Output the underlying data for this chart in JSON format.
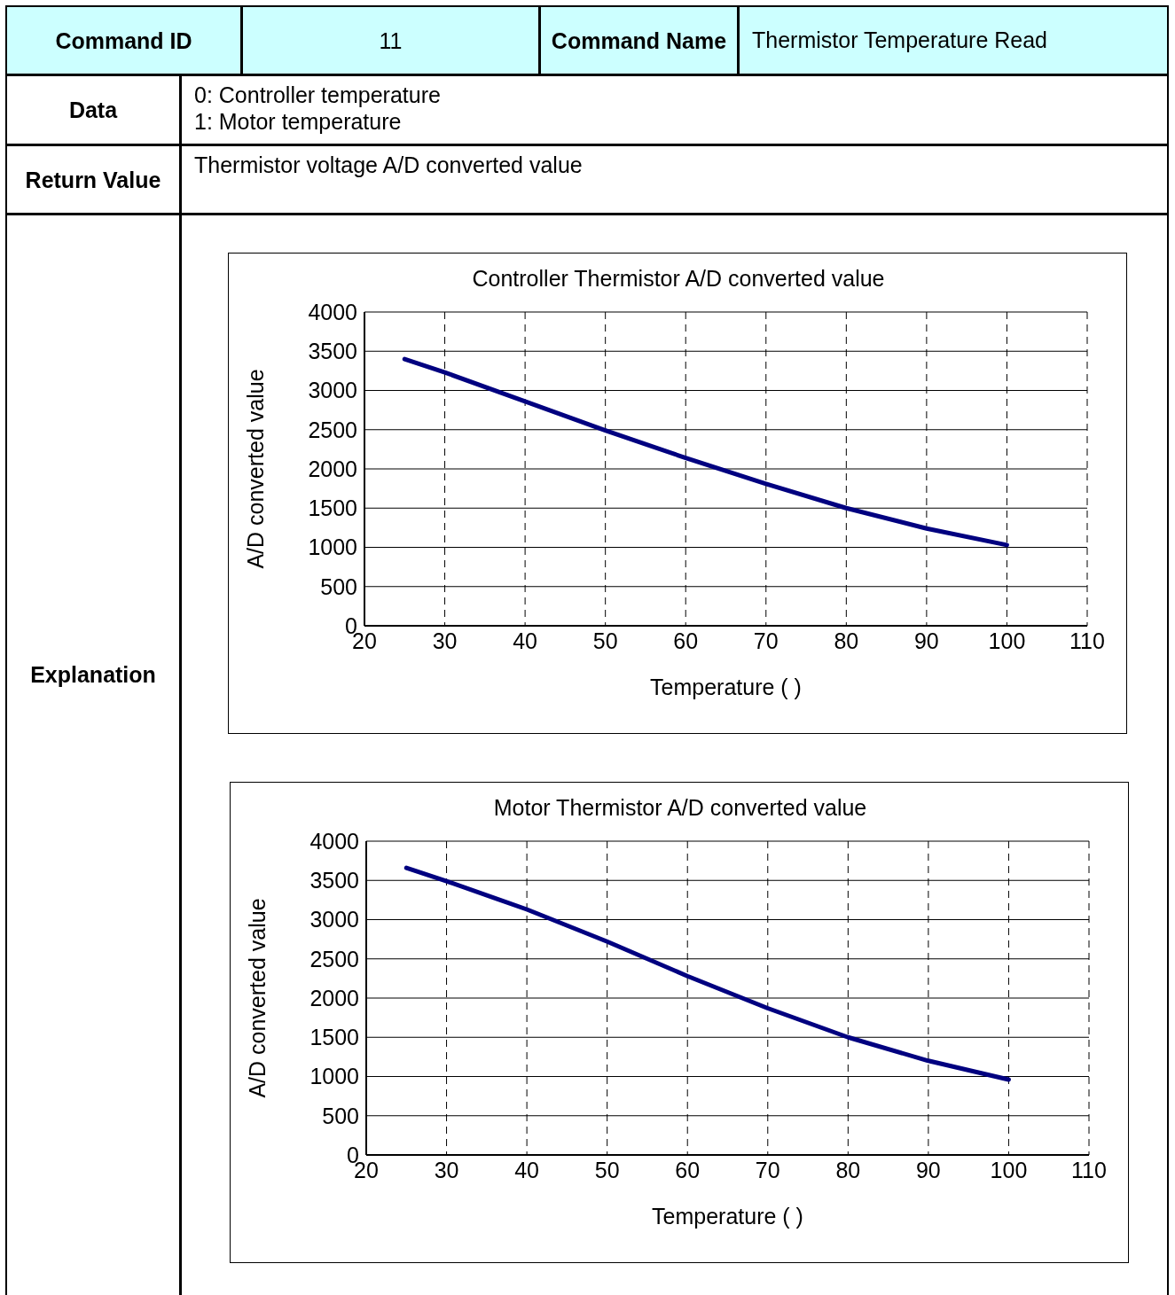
{
  "chart_data": [
    {
      "type": "other",
      "annotations": [
        "Command ID",
        "11",
        "Command Name",
        "Thermistor Temperature Read",
        "Data",
        "0: Controller temperature",
        "1: Motor temperature",
        "Return Value",
        "Thermistor voltage A/D converted value",
        "Explanation"
      ]
    },
    {
      "type": "line",
      "title": "Controller Thermistor A/D converted value",
      "xlabel": "Temperature (   )",
      "ylabel": "A/D converted value",
      "x": [
        25,
        30,
        40,
        50,
        60,
        70,
        80,
        90,
        100
      ],
      "series": [
        {
          "color": "#000080",
          "values": [
            3400,
            3230,
            2860,
            2490,
            2140,
            1810,
            1500,
            1240,
            1030
          ]
        }
      ],
      "xlim": [
        20,
        110
      ],
      "xticks": [
        20,
        30,
        40,
        50,
        60,
        70,
        80,
        90,
        100,
        110
      ],
      "ylim": [
        0,
        4000
      ],
      "yticks": [
        0,
        500,
        1000,
        1500,
        2000,
        2500,
        3000,
        3500,
        4000
      ],
      "grid": true,
      "marker": "none",
      "line_style": "solid"
    },
    {
      "type": "line",
      "title": "Motor Thermistor A/D converted value",
      "xlabel": "Temperature (   )",
      "ylabel": "A/D converted value",
      "x": [
        25,
        30,
        40,
        50,
        60,
        70,
        80,
        90,
        100
      ],
      "series": [
        {
          "color": "#000080",
          "values": [
            3660,
            3490,
            3130,
            2720,
            2280,
            1870,
            1500,
            1200,
            960
          ]
        }
      ],
      "xlim": [
        20,
        110
      ],
      "xticks": [
        20,
        30,
        40,
        50,
        60,
        70,
        80,
        90,
        100,
        110
      ],
      "ylim": [
        0,
        4000
      ],
      "yticks": [
        0,
        500,
        1000,
        1500,
        2000,
        2500,
        3000,
        3500,
        4000
      ],
      "grid": true,
      "marker": "none",
      "line_style": "solid"
    }
  ]
}
